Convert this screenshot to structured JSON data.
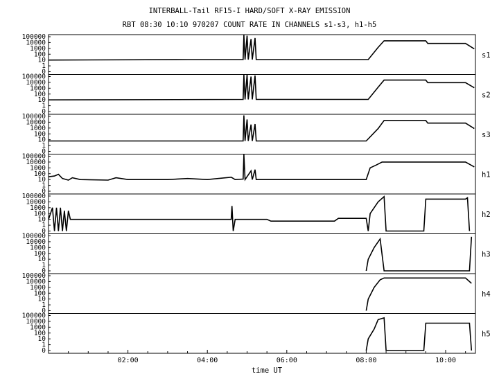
{
  "title_line1": "INTERBALL-Tail RF15-I HARD/SOFT X-RAY EMISSION",
  "title_line2": "RBT 08:30 10:10 970207  COUNT RATE IN CHANNELS s1-s3, h1-h5",
  "xlabel": "time UT",
  "chart_data": {
    "type": "line",
    "xlim_hours": [
      0,
      10.75
    ],
    "x_ticks": [
      {
        "h": 2,
        "label": "02:00"
      },
      {
        "h": 4,
        "label": "04:00"
      },
      {
        "h": 6,
        "label": "06:00"
      },
      {
        "h": 8,
        "label": "08:00"
      },
      {
        "h": 10,
        "label": "10:00"
      }
    ],
    "y_scale": "log",
    "y_ticks": [
      "100000",
      "10000",
      "1000",
      "100",
      "10",
      "1",
      "0"
    ],
    "panels": [
      {
        "label": "s1",
        "data": [
          [
            0,
            10
          ],
          [
            3.5,
            12
          ],
          [
            4.9,
            12
          ],
          [
            4.92,
            300000
          ],
          [
            4.95,
            12
          ],
          [
            5.0,
            150000
          ],
          [
            5.03,
            12
          ],
          [
            5.1,
            40000
          ],
          [
            5.13,
            12
          ],
          [
            5.2,
            60000
          ],
          [
            5.23,
            12
          ],
          [
            7.0,
            12
          ],
          [
            8.05,
            12
          ],
          [
            8.3,
            1500
          ],
          [
            8.45,
            20000
          ],
          [
            9.5,
            20000
          ],
          [
            9.55,
            7000
          ],
          [
            10.5,
            7000
          ],
          [
            10.72,
            800
          ]
        ]
      },
      {
        "label": "s2",
        "data": [
          [
            0,
            10
          ],
          [
            4.9,
            12
          ],
          [
            4.92,
            200000
          ],
          [
            4.95,
            12
          ],
          [
            5.0,
            200000
          ],
          [
            5.03,
            12
          ],
          [
            5.1,
            100000
          ],
          [
            5.13,
            12
          ],
          [
            5.2,
            150000
          ],
          [
            5.23,
            12
          ],
          [
            7.0,
            12
          ],
          [
            8.05,
            12
          ],
          [
            8.3,
            1500
          ],
          [
            8.45,
            25000
          ],
          [
            9.5,
            25000
          ],
          [
            9.55,
            9000
          ],
          [
            10.5,
            9000
          ],
          [
            10.72,
            1200
          ]
        ]
      },
      {
        "label": "s3",
        "data": [
          [
            0,
            6
          ],
          [
            4.9,
            6
          ],
          [
            4.92,
            150000
          ],
          [
            4.95,
            6
          ],
          [
            5.0,
            30000
          ],
          [
            5.03,
            6
          ],
          [
            5.1,
            4000
          ],
          [
            5.13,
            6
          ],
          [
            5.2,
            5000
          ],
          [
            5.23,
            6
          ],
          [
            8.0,
            6
          ],
          [
            8.3,
            800
          ],
          [
            8.45,
            20000
          ],
          [
            9.5,
            20000
          ],
          [
            9.55,
            7000
          ],
          [
            10.5,
            7000
          ],
          [
            10.72,
            800
          ]
        ]
      },
      {
        "label": "h1",
        "data": [
          [
            0,
            30
          ],
          [
            0.15,
            40
          ],
          [
            0.25,
            80
          ],
          [
            0.35,
            15
          ],
          [
            0.5,
            8
          ],
          [
            0.6,
            20
          ],
          [
            0.8,
            10
          ],
          [
            1.5,
            8
          ],
          [
            1.7,
            20
          ],
          [
            2.0,
            10
          ],
          [
            3.0,
            10
          ],
          [
            3.5,
            15
          ],
          [
            4.0,
            10
          ],
          [
            4.6,
            25
          ],
          [
            4.7,
            10
          ],
          [
            4.9,
            12
          ],
          [
            4.92,
            200000
          ],
          [
            4.95,
            10
          ],
          [
            5.1,
            300
          ],
          [
            5.13,
            10
          ],
          [
            5.2,
            500
          ],
          [
            5.23,
            10
          ],
          [
            8.0,
            10
          ],
          [
            8.1,
            1000
          ],
          [
            8.25,
            3000
          ],
          [
            8.4,
            10000
          ],
          [
            9.5,
            10000
          ],
          [
            10.5,
            10000
          ],
          [
            10.72,
            1500
          ]
        ]
      },
      {
        "label": "h2",
        "data": [
          [
            0,
            10
          ],
          [
            0.1,
            1000
          ],
          [
            0.15,
            0
          ],
          [
            0.2,
            1000
          ],
          [
            0.25,
            0
          ],
          [
            0.3,
            1000
          ],
          [
            0.35,
            0
          ],
          [
            0.4,
            300
          ],
          [
            0.45,
            0
          ],
          [
            0.5,
            300
          ],
          [
            0.55,
            10
          ],
          [
            4.6,
            10
          ],
          [
            4.62,
            2000
          ],
          [
            4.65,
            0
          ],
          [
            4.7,
            10
          ],
          [
            5.5,
            10
          ],
          [
            5.6,
            5
          ],
          [
            7.2,
            5
          ],
          [
            7.3,
            15
          ],
          [
            8.0,
            15
          ],
          [
            8.05,
            0
          ],
          [
            8.1,
            100
          ],
          [
            8.3,
            10000
          ],
          [
            8.45,
            80000
          ],
          [
            8.5,
            0
          ],
          [
            9.45,
            0
          ],
          [
            9.5,
            30000
          ],
          [
            10.5,
            30000
          ],
          [
            10.55,
            50000
          ],
          [
            10.6,
            0
          ]
        ]
      },
      {
        "label": "h3",
        "data": [
          [
            8.0,
            0
          ],
          [
            8.05,
            10
          ],
          [
            8.2,
            1000
          ],
          [
            8.35,
            30000
          ],
          [
            8.45,
            0
          ],
          [
            10.6,
            0
          ],
          [
            10.65,
            70000
          ]
        ]
      },
      {
        "label": "h4",
        "data": [
          [
            8.0,
            0
          ],
          [
            8.05,
            10
          ],
          [
            8.2,
            1000
          ],
          [
            8.35,
            20000
          ],
          [
            8.45,
            40000
          ],
          [
            9.5,
            40000
          ],
          [
            10.5,
            40000
          ],
          [
            10.65,
            5000
          ]
        ]
      },
      {
        "label": "h5",
        "data": [
          [
            8.0,
            0
          ],
          [
            8.05,
            10
          ],
          [
            8.2,
            500
          ],
          [
            8.3,
            20000
          ],
          [
            8.45,
            40000
          ],
          [
            8.5,
            0
          ],
          [
            9.45,
            0
          ],
          [
            9.5,
            5000
          ],
          [
            10.5,
            5000
          ],
          [
            10.6,
            5000
          ],
          [
            10.65,
            0
          ]
        ]
      }
    ]
  }
}
